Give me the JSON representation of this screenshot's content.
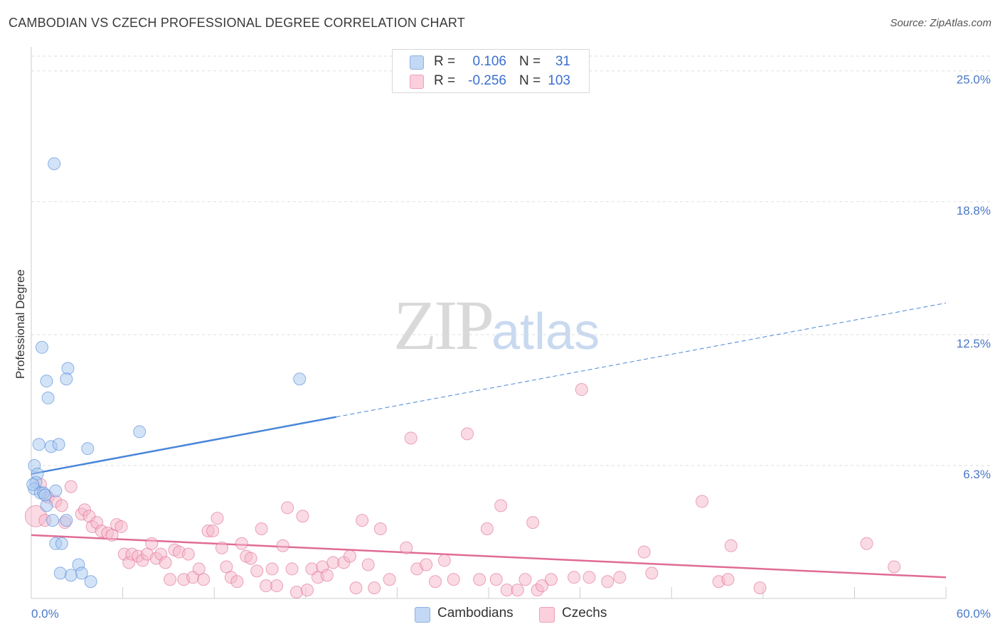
{
  "header": {
    "title": "CAMBODIAN VS CZECH PROFESSIONAL DEGREE CORRELATION CHART",
    "source": "Source: ZipAtlas.com"
  },
  "watermark": {
    "zip": "ZIP",
    "atlas": "atlas"
  },
  "legend": {
    "rows": [
      {
        "r_label": "R =",
        "r_value": "0.106",
        "n_label": "N =",
        "n_value": "31",
        "color": "#a8c8f0"
      },
      {
        "r_label": "R =",
        "r_value": "-0.256",
        "n_label": "N =",
        "n_value": "103",
        "color": "#f5b8ca"
      }
    ]
  },
  "bottom_legend": {
    "items": [
      {
        "label": "Cambodians",
        "color": "#a8c8f0"
      },
      {
        "label": "Czechs",
        "color": "#f5b8ca"
      }
    ]
  },
  "chart_data": {
    "type": "scatter",
    "title": "CAMBODIAN VS CZECH PROFESSIONAL DEGREE CORRELATION CHART",
    "ylabel": "Professional Degree",
    "xlabel": "",
    "xlim": [
      0,
      60
    ],
    "ylim": [
      0,
      26.0
    ],
    "x_tick_labels": [
      "0.0%",
      "60.0%"
    ],
    "y_ticks": [
      6.3,
      12.5,
      18.8,
      25.0
    ],
    "y_tick_labels": [
      "6.3%",
      "12.5%",
      "18.8%",
      "25.0%"
    ],
    "grid": true,
    "series": [
      {
        "name": "Cambodians",
        "color": "#4a86d8",
        "fill": "#a8c8f0",
        "trend": {
          "x0": 0,
          "y0": 5.9,
          "x1": 20,
          "y1": 8.6,
          "dash_to_x": 60,
          "dash_to_y": 14.0
        },
        "points": [
          [
            1.5,
            20.6
          ],
          [
            0.7,
            11.9
          ],
          [
            1.0,
            10.3
          ],
          [
            2.4,
            10.9
          ],
          [
            2.3,
            10.4
          ],
          [
            1.1,
            9.5
          ],
          [
            17.6,
            10.4
          ],
          [
            7.1,
            7.9
          ],
          [
            0.5,
            7.3
          ],
          [
            1.3,
            7.2
          ],
          [
            1.8,
            7.3
          ],
          [
            3.7,
            7.1
          ],
          [
            0.2,
            6.3
          ],
          [
            0.4,
            5.9
          ],
          [
            0.3,
            5.5
          ],
          [
            0.2,
            5.2
          ],
          [
            0.6,
            5.0
          ],
          [
            0.8,
            5.0
          ],
          [
            1.6,
            5.1
          ],
          [
            1.0,
            4.4
          ],
          [
            1.4,
            3.7
          ],
          [
            2.3,
            3.7
          ],
          [
            1.6,
            2.6
          ],
          [
            2.0,
            2.6
          ],
          [
            3.1,
            1.6
          ],
          [
            3.3,
            1.2
          ],
          [
            2.6,
            1.1
          ],
          [
            1.9,
            1.2
          ],
          [
            3.9,
            0.8
          ],
          [
            0.1,
            5.4
          ],
          [
            0.9,
            4.9
          ]
        ]
      },
      {
        "name": "Czechs",
        "color": "#e06b96",
        "fill": "#f5b8ca",
        "trend": {
          "x0": 0,
          "y0": 3.0,
          "x1": 60,
          "y1": 1.0
        },
        "points": [
          [
            0.3,
            3.9
          ],
          [
            0.6,
            5.4
          ],
          [
            1.1,
            4.8
          ],
          [
            1.6,
            4.6
          ],
          [
            2.0,
            4.4
          ],
          [
            2.6,
            5.3
          ],
          [
            2.2,
            3.6
          ],
          [
            3.3,
            4.0
          ],
          [
            3.5,
            4.2
          ],
          [
            3.8,
            3.9
          ],
          [
            4.0,
            3.4
          ],
          [
            4.3,
            3.6
          ],
          [
            4.6,
            3.2
          ],
          [
            5.0,
            3.1
          ],
          [
            5.3,
            3.0
          ],
          [
            5.6,
            3.5
          ],
          [
            5.9,
            3.4
          ],
          [
            6.1,
            2.1
          ],
          [
            6.4,
            1.7
          ],
          [
            6.6,
            2.1
          ],
          [
            7.0,
            2.0
          ],
          [
            7.3,
            1.8
          ],
          [
            7.6,
            2.1
          ],
          [
            7.9,
            2.6
          ],
          [
            8.2,
            1.9
          ],
          [
            8.5,
            2.1
          ],
          [
            8.8,
            1.7
          ],
          [
            9.1,
            0.9
          ],
          [
            9.4,
            2.3
          ],
          [
            9.7,
            2.2
          ],
          [
            10.0,
            0.9
          ],
          [
            10.3,
            2.1
          ],
          [
            10.6,
            1.0
          ],
          [
            11.0,
            1.4
          ],
          [
            11.3,
            0.9
          ],
          [
            11.6,
            3.2
          ],
          [
            11.9,
            3.2
          ],
          [
            12.2,
            3.8
          ],
          [
            12.5,
            2.4
          ],
          [
            12.8,
            1.5
          ],
          [
            13.1,
            1.0
          ],
          [
            13.5,
            0.8
          ],
          [
            13.8,
            2.6
          ],
          [
            14.1,
            2.0
          ],
          [
            14.4,
            1.9
          ],
          [
            14.8,
            1.3
          ],
          [
            15.1,
            3.3
          ],
          [
            15.4,
            0.6
          ],
          [
            15.8,
            1.4
          ],
          [
            16.1,
            0.6
          ],
          [
            16.5,
            2.5
          ],
          [
            16.8,
            4.3
          ],
          [
            17.1,
            1.4
          ],
          [
            17.4,
            0.3
          ],
          [
            17.8,
            3.9
          ],
          [
            18.1,
            0.4
          ],
          [
            18.4,
            1.4
          ],
          [
            18.8,
            1.0
          ],
          [
            19.1,
            1.5
          ],
          [
            19.4,
            1.1
          ],
          [
            19.8,
            1.7
          ],
          [
            20.5,
            1.7
          ],
          [
            20.9,
            2.0
          ],
          [
            21.3,
            0.5
          ],
          [
            21.7,
            3.7
          ],
          [
            22.1,
            1.6
          ],
          [
            22.5,
            0.5
          ],
          [
            22.9,
            3.3
          ],
          [
            23.5,
            0.9
          ],
          [
            24.6,
            2.4
          ],
          [
            24.9,
            7.6
          ],
          [
            25.3,
            1.4
          ],
          [
            25.9,
            1.6
          ],
          [
            26.5,
            0.8
          ],
          [
            27.1,
            1.8
          ],
          [
            27.7,
            0.9
          ],
          [
            28.6,
            7.8
          ],
          [
            29.4,
            0.9
          ],
          [
            29.9,
            3.3
          ],
          [
            30.5,
            0.9
          ],
          [
            30.8,
            4.4
          ],
          [
            31.2,
            0.4
          ],
          [
            31.9,
            0.4
          ],
          [
            32.4,
            0.9
          ],
          [
            32.9,
            3.6
          ],
          [
            33.2,
            0.4
          ],
          [
            33.5,
            0.6
          ],
          [
            34.1,
            0.9
          ],
          [
            35.6,
            1.0
          ],
          [
            36.1,
            9.9
          ],
          [
            36.6,
            1.0
          ],
          [
            37.8,
            0.8
          ],
          [
            38.6,
            1.0
          ],
          [
            40.2,
            2.2
          ],
          [
            40.7,
            1.2
          ],
          [
            44.0,
            4.6
          ],
          [
            45.1,
            0.8
          ],
          [
            45.7,
            0.9
          ],
          [
            45.9,
            2.5
          ],
          [
            47.8,
            0.5
          ],
          [
            54.8,
            2.6
          ],
          [
            56.6,
            1.5
          ],
          [
            0.9,
            3.7
          ]
        ]
      }
    ]
  }
}
